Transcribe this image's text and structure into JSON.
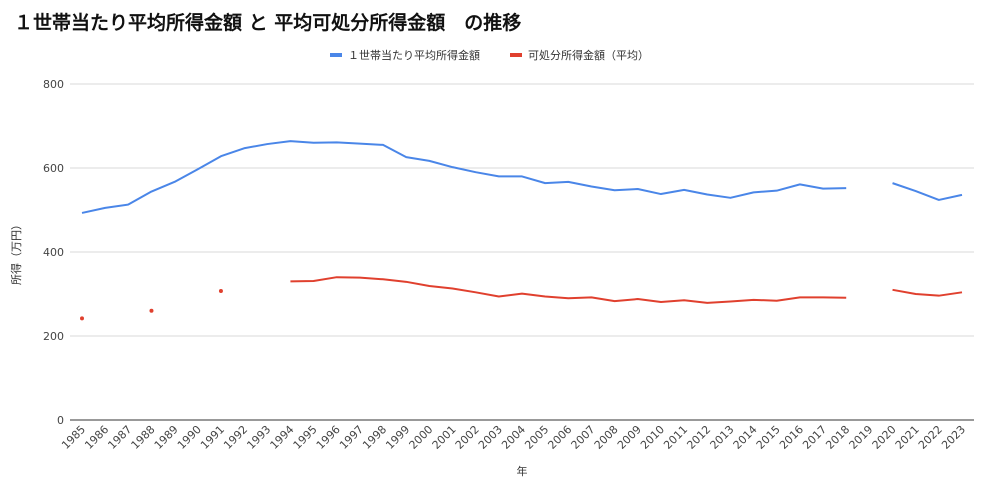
{
  "chart_data": {
    "type": "line",
    "title": "１世帯当たり平均所得金額 と 平均可処分所得金額　の推移",
    "xlabel": "年",
    "ylabel": "所得（万円）",
    "ylim": [
      0,
      800
    ],
    "yticks": [
      0,
      200,
      400,
      600,
      800
    ],
    "grid": true,
    "legend_position": "top",
    "categories": [
      "1985",
      "1986",
      "1987",
      "1988",
      "1989",
      "1990",
      "1991",
      "1992",
      "1993",
      "1994",
      "1995",
      "1996",
      "1997",
      "1998",
      "1999",
      "2000",
      "2001",
      "2002",
      "2003",
      "2004",
      "2005",
      "2006",
      "2007",
      "2008",
      "2009",
      "2010",
      "2011",
      "2012",
      "2013",
      "2014",
      "2015",
      "2016",
      "2017",
      "2018",
      "2019",
      "2020",
      "2021",
      "2022",
      "2023"
    ],
    "series": [
      {
        "name": "１世帯当たり平均所得金額",
        "color": "#4a86e8",
        "values": [
          493,
          505,
          513,
          544,
          567,
          597,
          628,
          647,
          657,
          664,
          660,
          661,
          658,
          655,
          626,
          617,
          602,
          590,
          580,
          580,
          564,
          567,
          556,
          547,
          550,
          538,
          548,
          537,
          529,
          542,
          546,
          561,
          551,
          552,
          null,
          564,
          545,
          524,
          536
        ]
      },
      {
        "name": "可処分所得金額（平均）",
        "color": "#e0402e",
        "values": [
          242,
          null,
          null,
          260,
          null,
          null,
          307,
          null,
          null,
          330,
          331,
          340,
          339,
          335,
          329,
          319,
          313,
          304,
          294,
          301,
          294,
          290,
          292,
          283,
          288,
          281,
          285,
          279,
          282,
          286,
          284,
          292,
          292,
          291,
          null,
          310,
          300,
          296,
          304
        ]
      }
    ]
  }
}
